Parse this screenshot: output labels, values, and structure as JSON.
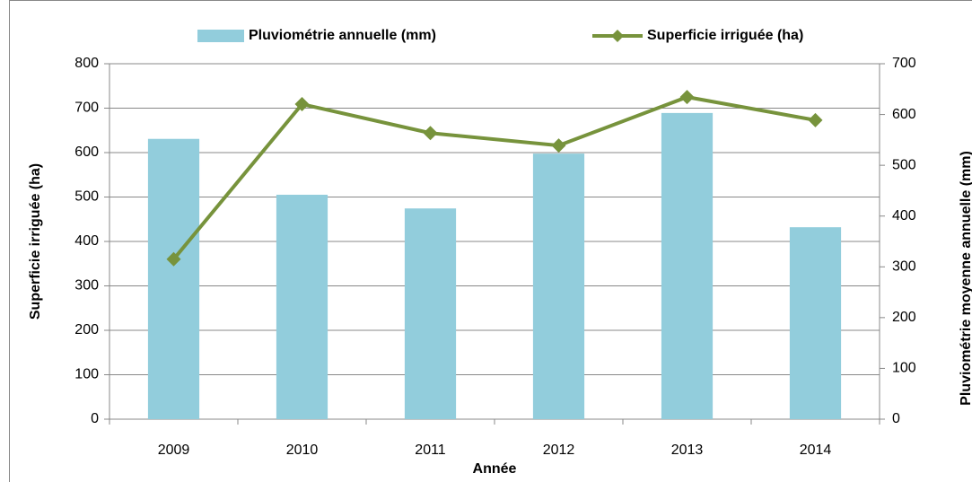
{
  "chart_data": {
    "type": "bar-line",
    "x_label": "Année",
    "y_label": "Superficie irriguée (ha)",
    "y2_label": "Pluviométrie moyenne annuelle (mm)",
    "categories": [
      "2009",
      "2010",
      "2011",
      "2012",
      "2013",
      "2014"
    ],
    "series": [
      {
        "name": "Pluviométrie annuelle (mm)",
        "type": "bar",
        "axis": "y2",
        "color": "#92cddc",
        "values": [
          552,
          442,
          415,
          523,
          603,
          378
        ]
      },
      {
        "name": "Superficie irriguée (ha)",
        "type": "line",
        "axis": "y",
        "color": "#77933c",
        "values": [
          360,
          709,
          644,
          616,
          725,
          673
        ]
      }
    ],
    "ylim": [
      0,
      800
    ],
    "yticks": [
      0,
      100,
      200,
      300,
      400,
      500,
      600,
      700,
      800
    ],
    "y2lim": [
      0,
      700
    ],
    "y2ticks": [
      0,
      100,
      200,
      300,
      400,
      500,
      600,
      700
    ],
    "grid": true
  }
}
